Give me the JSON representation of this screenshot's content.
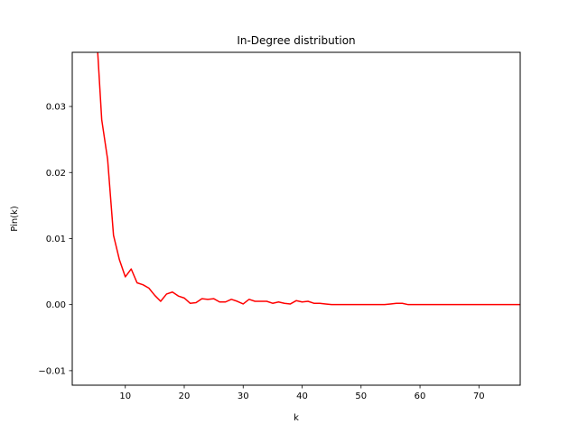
{
  "chart_data": {
    "type": "line",
    "title": "In-Degree distribution",
    "xlabel": "k",
    "ylabel": "Pin(k)",
    "xlim": [
      1,
      77
    ],
    "ylim": [
      -0.0122,
      0.0382
    ],
    "xticks": [
      10,
      20,
      30,
      40,
      50,
      60,
      70
    ],
    "xtick_labels": [
      "10",
      "20",
      "30",
      "40",
      "50",
      "60",
      "70"
    ],
    "yticks": [
      -0.01,
      0.0,
      0.01,
      0.02,
      0.03
    ],
    "ytick_labels": [
      "−0.01",
      "0.00",
      "0.01",
      "0.02",
      "0.03"
    ],
    "grid": false,
    "legend": "none",
    "series": [
      {
        "color": "#ff0000",
        "x": [
          5,
          6,
          7,
          8,
          9,
          10,
          11,
          12,
          13,
          14,
          15,
          16,
          17,
          18,
          19,
          20,
          21,
          22,
          23,
          24,
          25,
          26,
          27,
          28,
          29,
          30,
          31,
          32,
          33,
          34,
          35,
          36,
          37,
          38,
          39,
          40,
          41,
          42,
          43,
          44,
          45,
          46,
          47,
          48,
          49,
          50,
          51,
          52,
          53,
          54,
          55,
          56,
          57,
          58,
          59,
          60,
          61,
          62,
          63,
          64,
          65,
          66,
          67,
          68,
          69,
          70,
          71,
          72,
          73,
          74,
          75,
          76,
          77
        ],
        "y": [
          0.043,
          0.028,
          0.022,
          0.0105,
          0.0068,
          0.0042,
          0.0054,
          0.0033,
          0.003,
          0.0025,
          0.0014,
          0.0005,
          0.0016,
          0.0019,
          0.0013,
          0.001,
          0.0002,
          0.0003,
          0.0009,
          0.0008,
          0.0009,
          0.0004,
          0.0004,
          0.0008,
          0.0005,
          0.0001,
          0.0008,
          0.0005,
          0.0005,
          0.0005,
          0.0002,
          0.0004,
          0.0002,
          0.0001,
          0.0006,
          0.0004,
          0.0005,
          0.0002,
          0.0002,
          0.0001,
          0.0,
          0.0,
          0.0,
          0.0,
          0.0,
          0.0,
          0.0,
          0.0,
          0.0,
          0.0,
          0.0001,
          0.0002,
          0.0002,
          0.0,
          0.0,
          0.0,
          0.0,
          0.0,
          0.0,
          0.0,
          0.0,
          0.0,
          0.0,
          0.0,
          0.0,
          0.0,
          0.0,
          0.0,
          0.0,
          0.0,
          0.0,
          0.0,
          0.0
        ]
      }
    ]
  }
}
